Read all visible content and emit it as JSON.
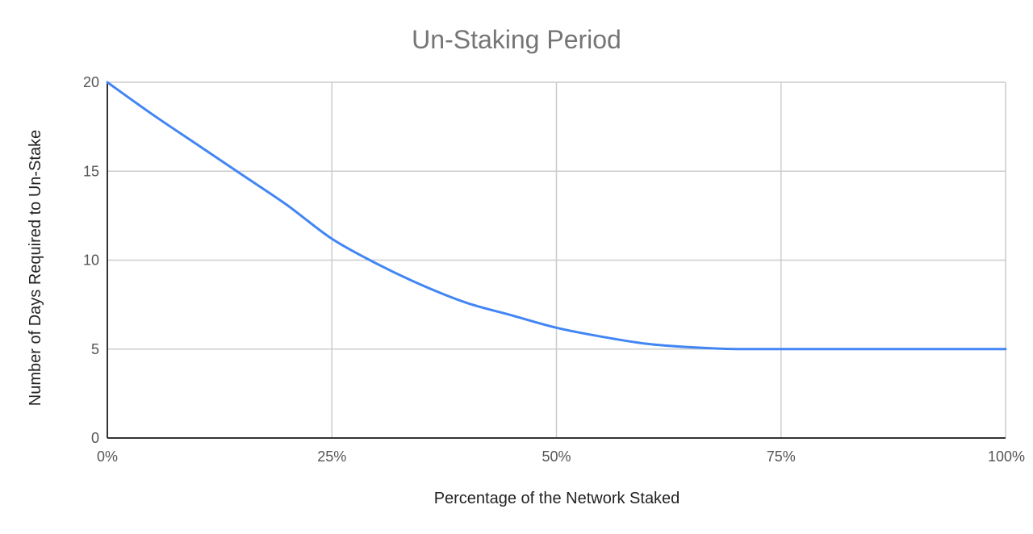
{
  "chart_data": {
    "type": "line",
    "title": "Un-Staking Period",
    "xlabel": "Percentage of the Network Staked",
    "ylabel": "Number of Days Required to Un-Stake",
    "xlim": [
      0,
      100
    ],
    "ylim": [
      0,
      20
    ],
    "x_ticks": [
      0,
      25,
      50,
      75,
      100
    ],
    "x_tick_labels": [
      "0%",
      "25%",
      "50%",
      "75%",
      "100%"
    ],
    "y_ticks": [
      0,
      5,
      10,
      15,
      20
    ],
    "y_tick_labels": [
      "0",
      "5",
      "10",
      "15",
      "20"
    ],
    "grid": true,
    "series": [
      {
        "color": "#4285f4",
        "x": [
          0,
          5,
          10,
          15,
          20,
          25,
          30,
          35,
          40,
          45,
          50,
          55,
          60,
          65,
          70,
          75,
          80,
          85,
          90,
          95,
          100
        ],
        "y": [
          20,
          18.2,
          16.5,
          14.8,
          13.1,
          11.2,
          9.8,
          8.6,
          7.6,
          6.9,
          6.2,
          5.7,
          5.3,
          5.1,
          5.0,
          5.0,
          5.0,
          5.0,
          5.0,
          5.0,
          5.0
        ]
      }
    ]
  }
}
